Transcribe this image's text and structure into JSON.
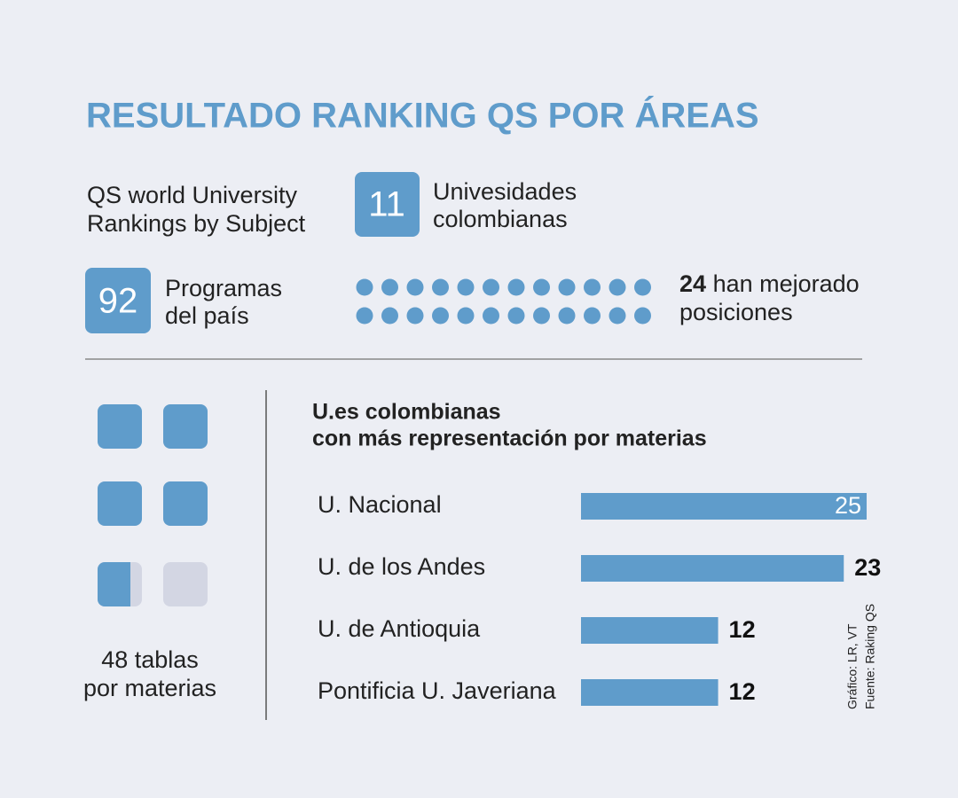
{
  "title": "RESULTADO RANKING QS POR ÁREAS",
  "subject": [
    "QS world University",
    "Rankings by Subject"
  ],
  "universities": {
    "count": 11,
    "label": [
      "Univesidades",
      "colombianas"
    ]
  },
  "programs": {
    "count": 92,
    "label": [
      "Programas",
      "del país"
    ]
  },
  "improved": {
    "count": 24,
    "label": [
      "han mejorado",
      "posiciones"
    ]
  },
  "tables": {
    "label": [
      "48 tablas",
      "por materias"
    ]
  },
  "chart_data": {
    "type": "bar",
    "title": [
      "U.es colombianas",
      "con más representación por materias"
    ],
    "categories": [
      "U. Nacional",
      "U. de los Andes",
      "U. de Antioquia",
      "Pontificia U. Javeriana"
    ],
    "values": [
      25,
      23,
      12,
      12
    ],
    "color": "#5f9ccb"
  },
  "credits": [
    "Gráfico: LR, VT",
    "Fuente: Raking QS"
  ]
}
